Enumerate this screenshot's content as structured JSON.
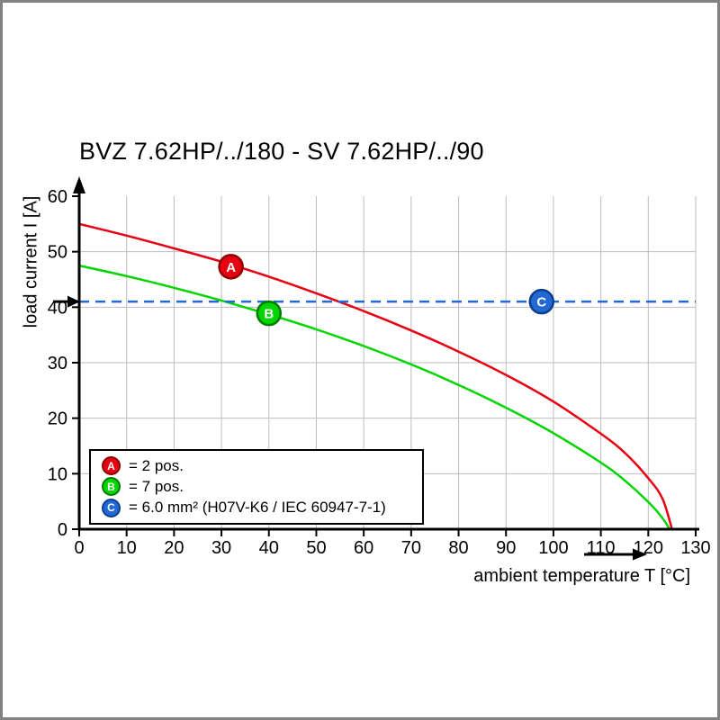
{
  "chart_data": {
    "type": "line",
    "title": "BVZ 7.62HP/../180 - SV 7.62HP/../90",
    "xlabel": "ambient temperature T [°C]",
    "ylabel": "load current I [A]",
    "xlim": [
      0,
      130
    ],
    "ylim": [
      0,
      60
    ],
    "xticks": [
      0,
      10,
      20,
      30,
      40,
      50,
      60,
      70,
      80,
      90,
      100,
      110,
      120,
      130
    ],
    "yticks": [
      0,
      10,
      20,
      30,
      40,
      50,
      60
    ],
    "grid": true,
    "legend_position": "lower-left",
    "rated_current_A": 41,
    "series": [
      {
        "name": "A",
        "legend_label": "= 2 pos.",
        "color": "#e60012",
        "stroke": "#8f0000",
        "marker": {
          "x": 32,
          "y": 47.3
        },
        "points": [
          [
            0,
            55
          ],
          [
            10,
            52.9
          ],
          [
            20,
            50.6
          ],
          [
            30,
            48.2
          ],
          [
            40,
            45.5
          ],
          [
            50,
            42.5
          ],
          [
            60,
            39.3
          ],
          [
            70,
            35.8
          ],
          [
            80,
            32
          ],
          [
            90,
            27.8
          ],
          [
            100,
            23
          ],
          [
            110,
            17.2
          ],
          [
            115,
            13.8
          ],
          [
            120,
            9.2
          ],
          [
            123,
            5.5
          ],
          [
            125,
            0
          ]
        ]
      },
      {
        "name": "B",
        "legend_label": "= 7 pos.",
        "color": "#00d500",
        "stroke": "#007a00",
        "marker": {
          "x": 40,
          "y": 38.9
        },
        "points": [
          [
            0,
            47.5
          ],
          [
            10,
            45.6
          ],
          [
            20,
            43.5
          ],
          [
            30,
            41.2
          ],
          [
            40,
            38.7
          ],
          [
            50,
            36
          ],
          [
            60,
            33
          ],
          [
            70,
            29.7
          ],
          [
            80,
            26
          ],
          [
            90,
            21.9
          ],
          [
            100,
            17.3
          ],
          [
            110,
            12
          ],
          [
            115,
            8.8
          ],
          [
            120,
            4.9
          ],
          [
            123,
            2
          ],
          [
            124.5,
            0
          ]
        ]
      },
      {
        "name": "C",
        "legend_label": "= 6.0 mm² (H07V-K6 / IEC 60947-7-1)",
        "color": "#2468d4",
        "stroke": "#0a3f8f",
        "line_y": 41,
        "marker": {
          "x": 97.5,
          "y": 41
        }
      }
    ]
  }
}
